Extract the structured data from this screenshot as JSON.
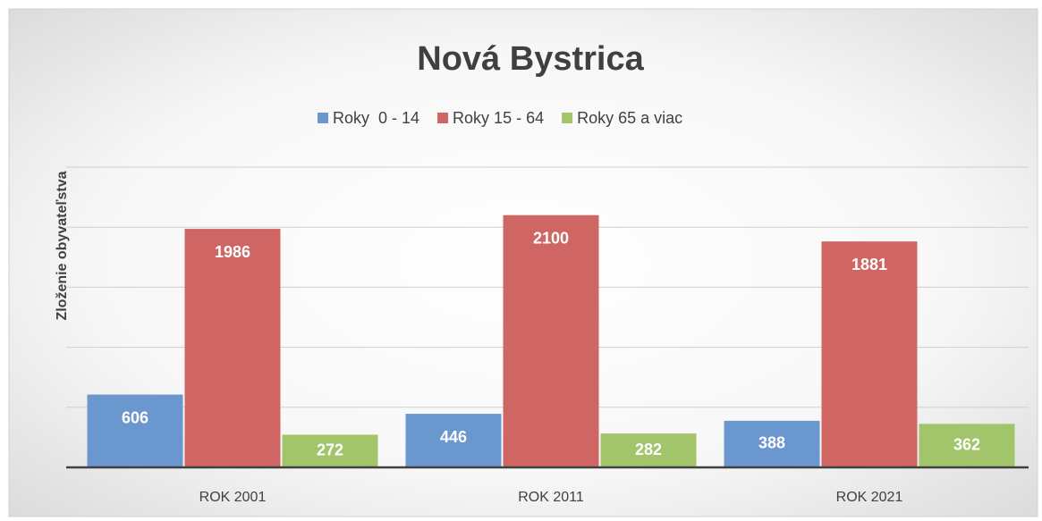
{
  "chart_data": {
    "type": "bar",
    "title": "Nová Bystrica",
    "y_label": "Zloženie obyvateľstva",
    "categories": [
      "ROK 2001",
      "ROK 2011",
      "ROK 2021"
    ],
    "series": [
      {
        "name": "Roky  0 - 14",
        "color": "#6b97cf",
        "values": [
          606,
          446,
          388
        ]
      },
      {
        "name": "Roky 15 - 64",
        "color": "#cf6664",
        "values": [
          1986,
          2100,
          1881
        ]
      },
      {
        "name": "Roky 65 a viac",
        "color": "#a2c46a",
        "values": [
          272,
          282,
          362
        ]
      }
    ],
    "ylim": [
      0,
      2500
    ],
    "yticks": [
      0,
      500,
      1000,
      1500,
      2000,
      2500
    ],
    "grid": true,
    "legend": "top"
  }
}
